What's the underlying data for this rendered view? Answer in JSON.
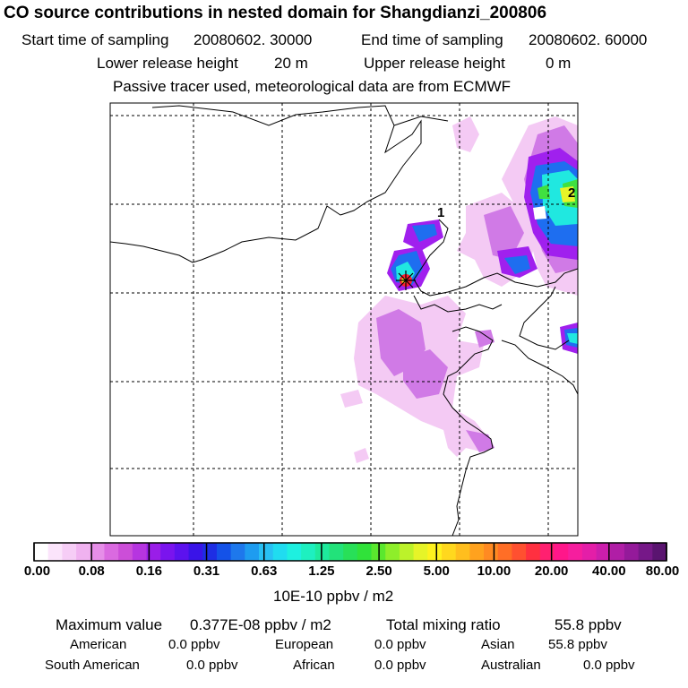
{
  "header": {
    "title": "CO  source contributions in nested domain for Shangdianzi_200806",
    "start_label": "Start time of sampling",
    "start_value": "20080602. 30000",
    "end_label": "End time of sampling",
    "end_value": "20080602. 60000",
    "lower_label": "Lower release height",
    "lower_value": "20 m",
    "upper_label": "Upper release height",
    "upper_value": "0 m",
    "note": "Passive tracer used, meteorological data are from ECMWF"
  },
  "map": {
    "marker_labels": [
      "1",
      "2"
    ]
  },
  "chart_data": {
    "type": "heatmap",
    "title": "CO  source contributions in nested domain for Shangdianzi_200806",
    "colorbar": {
      "units": "10E-10 ppbv / m2",
      "tick_labels": [
        "0.00",
        "0.08",
        "0.16",
        "0.31",
        "0.63",
        "1.25",
        "2.50",
        "5.00",
        "10.00",
        "20.00",
        "40.00",
        "80.00"
      ],
      "tick_values": [
        0.0,
        0.08,
        0.16,
        0.31,
        0.63,
        1.25,
        2.5,
        5.0,
        10.0,
        20.0,
        40.0,
        80.0
      ],
      "colors": [
        "#ffffff",
        "#fbe4fb",
        "#f6cdf6",
        "#f0b2f0",
        "#e68ee8",
        "#da6ae0",
        "#cc4ed8",
        "#b635e0",
        "#9a1ee8",
        "#7a14ee",
        "#5c12ee",
        "#3a14e8",
        "#1e2ee4",
        "#1452e8",
        "#1e78ec",
        "#1e9cf0",
        "#28c0f4",
        "#20dcf0",
        "#1ef0e0",
        "#1ef0c0",
        "#1eea9c",
        "#22e27a",
        "#28e058",
        "#30e23a",
        "#5ae82e",
        "#8eee2a",
        "#bcf22a",
        "#e6f428",
        "#fff21e",
        "#ffd81e",
        "#ffbe1e",
        "#ffa21e",
        "#ff8a22",
        "#ff6e26",
        "#ff5030",
        "#ff3040",
        "#ff2070",
        "#ff168a",
        "#f61e9e",
        "#e41ea8",
        "#cc1eac",
        "#b01ea6",
        "#941a9a",
        "#761888",
        "#5a1470"
      ]
    },
    "grid": true
  },
  "footer": {
    "max_label": "Maximum value",
    "max_value": "0.377E-08 ppbv / m2",
    "total_label": "Total mixing ratio",
    "total_value": "55.8 ppbv",
    "regions": [
      {
        "name": "American",
        "value": "0.0 ppbv"
      },
      {
        "name": "European",
        "value": "0.0 ppbv"
      },
      {
        "name": "Asian",
        "value": "55.8 ppbv"
      },
      {
        "name": "South American",
        "value": "0.0 ppbv"
      },
      {
        "name": "African",
        "value": "0.0 ppbv"
      },
      {
        "name": "Australian",
        "value": "0.0 ppbv"
      }
    ]
  }
}
